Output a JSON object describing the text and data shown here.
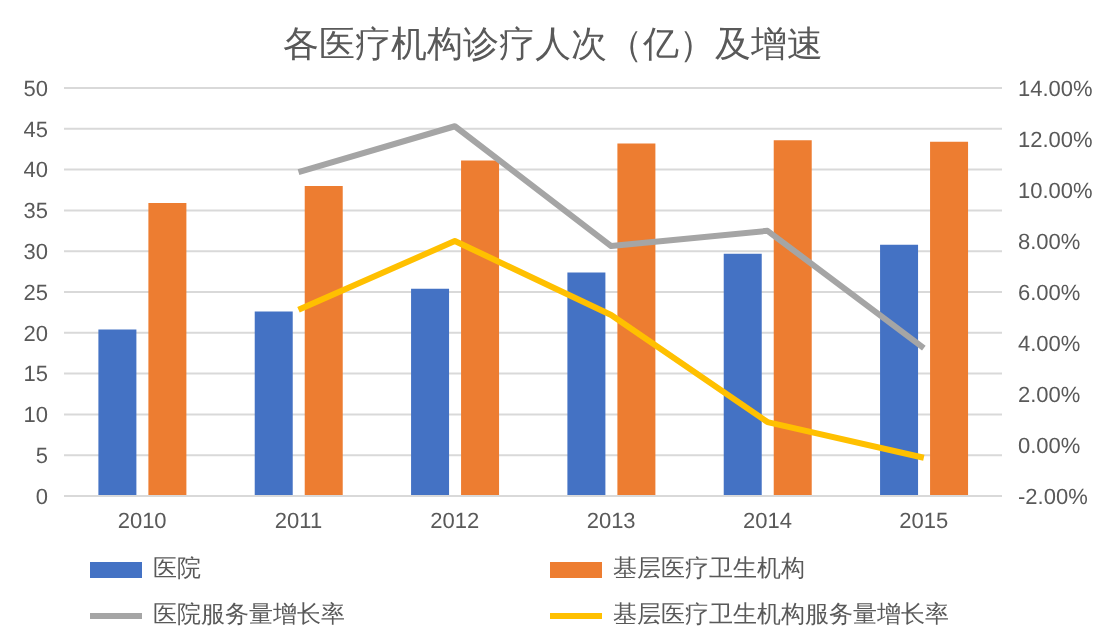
{
  "chart_data": {
    "type": "bar",
    "title": "各医疗机构诊疗人次（亿）及增速",
    "categories": [
      "2010",
      "2011",
      "2012",
      "2013",
      "2014",
      "2015"
    ],
    "series": [
      {
        "name": "医院",
        "color": "#4472c4",
        "values": [
          20.4,
          22.6,
          25.4,
          27.4,
          29.7,
          30.8
        ]
      },
      {
        "name": "基层医疗卫生机构",
        "color": "#ed7d31",
        "values": [
          35.9,
          38.0,
          41.1,
          43.2,
          43.6,
          43.4
        ]
      },
      {
        "name": "医院服务量增长率",
        "type": "line",
        "axis": "y2",
        "color": "#a5a5a5",
        "values": [
          null,
          10.7,
          12.5,
          7.8,
          8.4,
          3.8
        ]
      },
      {
        "name": "基层医疗卫生机构服务量增长率",
        "type": "line",
        "axis": "y2",
        "color": "#ffc000",
        "values": [
          null,
          5.3,
          8.0,
          5.1,
          0.9,
          -0.5
        ]
      }
    ],
    "ylim": [
      0,
      50
    ],
    "yticks": [
      0,
      5,
      10,
      15,
      20,
      25,
      30,
      35,
      40,
      45,
      50
    ],
    "y2lim": [
      -2,
      14
    ],
    "y2ticks": [
      {
        "value": -2,
        "label": "-2.00%"
      },
      {
        "value": 0,
        "label": "0.00%"
      },
      {
        "value": 2,
        "label": "2.00%"
      },
      {
        "value": 4,
        "label": "4.00%"
      },
      {
        "value": 6,
        "label": "6.00%"
      },
      {
        "value": 8,
        "label": "8.00%"
      },
      {
        "value": 10,
        "label": "10.00%"
      },
      {
        "value": 12,
        "label": "12.00%"
      },
      {
        "value": 14,
        "label": "14.00%"
      }
    ],
    "grid": "y",
    "legend": "bottom",
    "marker": "none",
    "line_style": "solid"
  }
}
